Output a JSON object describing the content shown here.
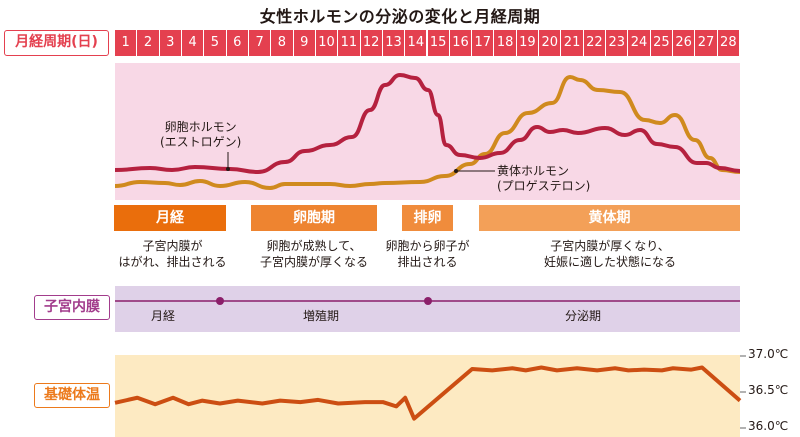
{
  "title": "女性ホルモンの分泌の変化と月経周期",
  "row_labels": {
    "cycle_days": "月経周期(日)",
    "endometrium": "子宮内膜",
    "basal_temp": "基礎体温"
  },
  "days": [
    "1",
    "2",
    "3",
    "4",
    "5",
    "6",
    "7",
    "8",
    "9",
    "10",
    "11",
    "12",
    "13",
    "14",
    "15",
    "16",
    "17",
    "18",
    "19",
    "20",
    "21",
    "22",
    "23",
    "24",
    "25",
    "26",
    "27",
    "28"
  ],
  "hormones": {
    "estrogen": {
      "name": "卵胞ホルモン",
      "sub": "(エストロゲン)",
      "color": "#b5213f"
    },
    "progesterone": {
      "name": "黄体ホルモン",
      "sub": "(プロゲステロン)",
      "color": "#d08a1e"
    }
  },
  "phases": [
    {
      "label": "月経",
      "desc": "子宮内膜が\nはがれ、排出される",
      "color": "#ea6e0c"
    },
    {
      "label": "卵胞期",
      "desc": "卵胞が成熟して、\n子宮内膜が厚くなる",
      "color": "#ee8430"
    },
    {
      "label": "排卵",
      "desc": "卵胞から卵子が\n排出される",
      "color": "#f08c3c"
    },
    {
      "label": "黄体期",
      "desc": "子宮内膜が厚くなり、\n妊娠に適した状態になる",
      "color": "#f3a058"
    }
  ],
  "endometrium": {
    "stages": [
      "月経",
      "増殖期",
      "分泌期"
    ],
    "color": "#8b1f6a"
  },
  "chart_data": {
    "type": "line",
    "ylabel": "",
    "ylim": [
      36.0,
      37.0
    ],
    "y_ticks": [
      "37.0℃",
      "36.5℃",
      "36.0℃"
    ],
    "series": [
      {
        "color": "#cc4e12",
        "points": [
          [
            0.5,
            36.35
          ],
          [
            1.5,
            36.42
          ],
          [
            2.3,
            36.33
          ],
          [
            3.1,
            36.42
          ],
          [
            3.8,
            36.33
          ],
          [
            4.4,
            36.38
          ],
          [
            5.2,
            36.34
          ],
          [
            6.0,
            36.38
          ],
          [
            7.1,
            36.34
          ],
          [
            7.9,
            36.38
          ],
          [
            8.8,
            36.36
          ],
          [
            9.6,
            36.39
          ],
          [
            10.5,
            36.34
          ],
          [
            11.7,
            36.36
          ],
          [
            12.5,
            36.36
          ],
          [
            13.1,
            36.3
          ],
          [
            13.5,
            36.42
          ],
          [
            13.9,
            36.13
          ],
          [
            16.5,
            36.82
          ],
          [
            17.4,
            36.8
          ],
          [
            18.3,
            36.83
          ],
          [
            18.9,
            36.8
          ],
          [
            19.6,
            36.84
          ],
          [
            20.3,
            36.8
          ],
          [
            21.2,
            36.83
          ],
          [
            22.1,
            36.8
          ],
          [
            22.9,
            36.83
          ],
          [
            23.5,
            36.8
          ],
          [
            24.2,
            36.81
          ],
          [
            25.0,
            36.8
          ],
          [
            25.5,
            36.83
          ],
          [
            26.3,
            36.81
          ],
          [
            26.8,
            36.84
          ],
          [
            28.5,
            36.38
          ]
        ]
      }
    ]
  }
}
